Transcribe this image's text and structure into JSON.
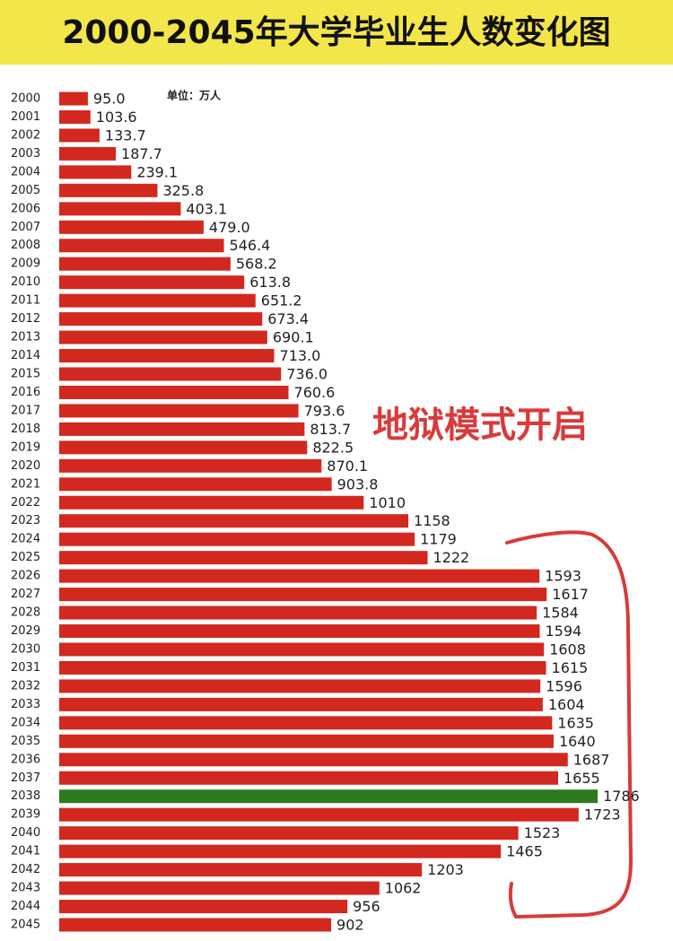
{
  "chart_data": {
    "type": "barh",
    "title": "2000-2045年大学毕业生人数变化图",
    "unit_label": "单位：万人",
    "annotation": "地狱模式开启",
    "categories": [
      "2000",
      "2001",
      "2002",
      "2003",
      "2004",
      "2005",
      "2006",
      "2007",
      "2008",
      "2009",
      "2010",
      "2011",
      "2012",
      "2013",
      "2014",
      "2015",
      "2016",
      "2017",
      "2018",
      "2019",
      "2020",
      "2021",
      "2022",
      "2023",
      "2024",
      "2025",
      "2026",
      "2027",
      "2028",
      "2029",
      "2030",
      "2031",
      "2032",
      "2033",
      "2034",
      "2035",
      "2036",
      "2037",
      "2038",
      "2039",
      "2040",
      "2041",
      "2042",
      "2043",
      "2044",
      "2045"
    ],
    "values": [
      95.0,
      103.6,
      133.7,
      187.7,
      239.1,
      325.8,
      403.1,
      479.0,
      546.4,
      568.2,
      613.8,
      651.2,
      673.4,
      690.1,
      713.0,
      736.0,
      760.6,
      793.6,
      813.7,
      822.5,
      870.1,
      903.8,
      1010,
      1158,
      1179,
      1222,
      1593,
      1617,
      1584,
      1594,
      1608,
      1615,
      1596,
      1604,
      1635,
      1640,
      1687,
      1655,
      1786,
      1723,
      1523,
      1465,
      1203,
      1062,
      956,
      902
    ],
    "value_labels": [
      "95.0",
      "103.6",
      "133.7",
      "187.7",
      "239.1",
      "325.8",
      "403.1",
      "479.0",
      "546.4",
      "568.2",
      "613.8",
      "651.2",
      "673.4",
      "690.1",
      "713.0",
      "736.0",
      "760.6",
      "793.6",
      "813.7",
      "822.5",
      "870.1",
      "903.8",
      "1010",
      "1158",
      "1179",
      "1222",
      "1593",
      "1617",
      "1584",
      "1594",
      "1608",
      "1615",
      "1596",
      "1604",
      "1635",
      "1640",
      "1687",
      "1655",
      "1786",
      "1723",
      "1523",
      "1465",
      "1203",
      "1062",
      "956",
      "902"
    ],
    "colors": [
      "#d2281f",
      "#d2281f",
      "#d2281f",
      "#d2281f",
      "#d2281f",
      "#d2281f",
      "#d2281f",
      "#d2281f",
      "#d2281f",
      "#d2281f",
      "#d2281f",
      "#d2281f",
      "#d2281f",
      "#d2281f",
      "#d2281f",
      "#d2281f",
      "#d2281f",
      "#d2281f",
      "#d2281f",
      "#d2281f",
      "#d2281f",
      "#d2281f",
      "#d2281f",
      "#d2281f",
      "#d2281f",
      "#d2281f",
      "#d2281f",
      "#d2281f",
      "#d2281f",
      "#d2281f",
      "#d2281f",
      "#d2281f",
      "#d2281f",
      "#d2281f",
      "#d2281f",
      "#d2281f",
      "#d2281f",
      "#d2281f",
      "#2d7a1f",
      "#d2281f",
      "#d2281f",
      "#d2281f",
      "#d2281f",
      "#d2281f",
      "#d2281f",
      "#d2281f"
    ]
  }
}
